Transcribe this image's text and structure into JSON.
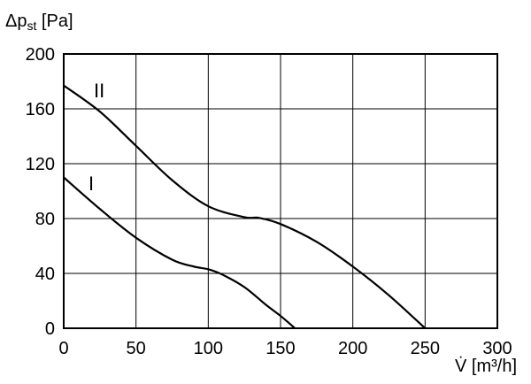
{
  "chart_data": {
    "type": "line",
    "ylabel": {
      "main": "Δp",
      "sub": "st",
      "unit": " [Pa]"
    },
    "xlabel": "V̇ [m³/h]",
    "xlim": [
      0,
      300
    ],
    "ylim": [
      0,
      200
    ],
    "x_ticks": [
      "0",
      "50",
      "100",
      "150",
      "200",
      "250",
      "300"
    ],
    "y_ticks": [
      "0",
      "40",
      "80",
      "120",
      "160",
      "200"
    ],
    "grid": true,
    "series": [
      {
        "name": "I",
        "x": [
          0,
          25,
          50,
          75,
          90,
          100,
          110,
          125,
          140,
          150,
          160
        ],
        "y": [
          110,
          87,
          66,
          50,
          45,
          43,
          39,
          30,
          17,
          9,
          0
        ]
      },
      {
        "name": "II",
        "x": [
          0,
          25,
          50,
          75,
          100,
          125,
          135,
          150,
          175,
          200,
          225,
          250
        ],
        "y": [
          177,
          158,
          133,
          108,
          89,
          81,
          80.5,
          76,
          63,
          45,
          24,
          0
        ]
      }
    ]
  }
}
